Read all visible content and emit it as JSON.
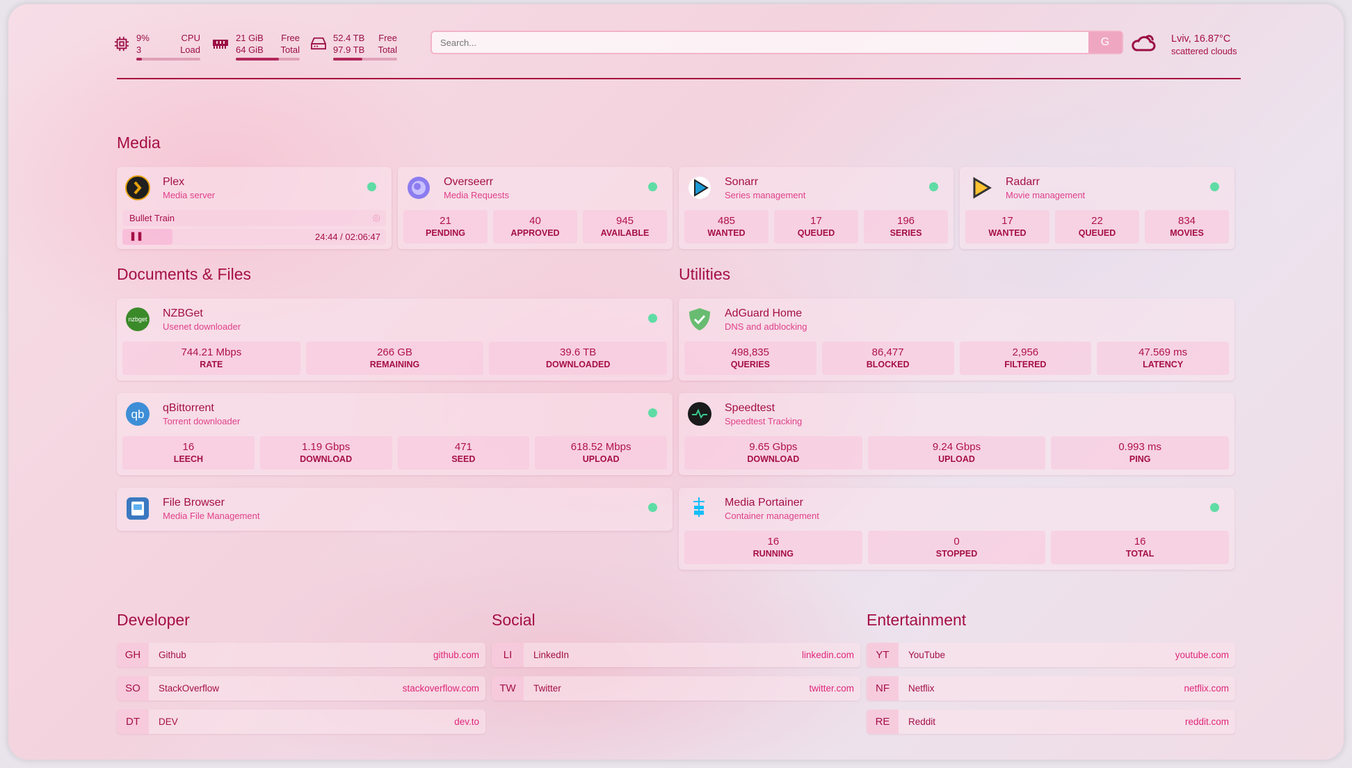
{
  "header": {
    "cpu": {
      "icon": "cpu-icon",
      "value": "9%",
      "value2": "3",
      "label": "CPU",
      "label2": "Load",
      "percent": 9
    },
    "memory": {
      "icon": "memory-icon",
      "value": "21 GiB",
      "value2": "64 GiB",
      "label": "Free",
      "label2": "Total",
      "percent": 67
    },
    "disk": {
      "icon": "disk-icon",
      "value": "52.4 TB",
      "value2": "97.9 TB",
      "label": "Free",
      "label2": "Total",
      "percent": 46
    },
    "search": {
      "placeholder": "Search...",
      "button": "G"
    },
    "weather": {
      "icon": "cloud-sun-icon",
      "location": "Lviv, 16.87°C",
      "condition": "scattered clouds"
    }
  },
  "colors": {
    "accent": "#a50f45",
    "status_ok": "#5fdca5",
    "chip": "#f8c8de"
  },
  "sections": {
    "media": "Media",
    "docs": "Documents & Files",
    "utilities": "Utilities",
    "developer": "Developer",
    "social": "Social",
    "entertainment": "Entertainment"
  },
  "plex": {
    "name": "Plex",
    "desc": "Media server",
    "now_playing": "Bullet Train",
    "time": "24:44 / 02:06:47",
    "progress_percent": 19
  },
  "services": [
    {
      "id": "overseerr",
      "name": "Overseerr",
      "desc": "Media Requests",
      "stats": [
        {
          "v": "21",
          "l": "PENDING"
        },
        {
          "v": "40",
          "l": "APPROVED"
        },
        {
          "v": "945",
          "l": "AVAILABLE"
        }
      ]
    },
    {
      "id": "sonarr",
      "name": "Sonarr",
      "desc": "Series management",
      "stats": [
        {
          "v": "485",
          "l": "WANTED"
        },
        {
          "v": "17",
          "l": "QUEUED"
        },
        {
          "v": "196",
          "l": "SERIES"
        }
      ]
    },
    {
      "id": "radarr",
      "name": "Radarr",
      "desc": "Movie management",
      "stats": [
        {
          "v": "17",
          "l": "WANTED"
        },
        {
          "v": "22",
          "l": "QUEUED"
        },
        {
          "v": "834",
          "l": "MOVIES"
        }
      ]
    },
    {
      "id": "nzbget",
      "name": "NZBGet",
      "desc": "Usenet downloader",
      "stats": [
        {
          "v": "744.21 Mbps",
          "l": "RATE"
        },
        {
          "v": "266 GB",
          "l": "REMAINING"
        },
        {
          "v": "39.6 TB",
          "l": "DOWNLOADED"
        }
      ]
    },
    {
      "id": "qbittorrent",
      "name": "qBittorrent",
      "desc": "Torrent downloader",
      "stats": [
        {
          "v": "16",
          "l": "LEECH"
        },
        {
          "v": "1.19 Gbps",
          "l": "DOWNLOAD"
        },
        {
          "v": "471",
          "l": "SEED"
        },
        {
          "v": "618.52 Mbps",
          "l": "UPLOAD"
        }
      ]
    },
    {
      "id": "filebrowser",
      "name": "File Browser",
      "desc": "Media File Management",
      "stats": []
    },
    {
      "id": "adguard",
      "name": "AdGuard Home",
      "desc": "DNS and adblocking",
      "stats": [
        {
          "v": "498,835",
          "l": "QUERIES"
        },
        {
          "v": "86,477",
          "l": "BLOCKED"
        },
        {
          "v": "2,956",
          "l": "FILTERED"
        },
        {
          "v": "47.569 ms",
          "l": "LATENCY"
        }
      ]
    },
    {
      "id": "speedtest",
      "name": "Speedtest",
      "desc": "Speedtest Tracking",
      "stats": [
        {
          "v": "9.65 Gbps",
          "l": "DOWNLOAD"
        },
        {
          "v": "9.24 Gbps",
          "l": "UPLOAD"
        },
        {
          "v": "0.993 ms",
          "l": "PING"
        }
      ]
    },
    {
      "id": "portainer",
      "name": "Media Portainer",
      "desc": "Container management",
      "stats": [
        {
          "v": "16",
          "l": "RUNNING"
        },
        {
          "v": "0",
          "l": "STOPPED"
        },
        {
          "v": "16",
          "l": "TOTAL"
        }
      ]
    }
  ],
  "links": [
    [
      {
        "ab": "GH",
        "name": "Github",
        "url": "github.com"
      },
      {
        "ab": "SO",
        "name": "StackOverflow",
        "url": "stackoverflow.com"
      },
      {
        "ab": "DT",
        "name": "DEV",
        "url": "dev.to"
      }
    ],
    [
      {
        "ab": "LI",
        "name": "LinkedIn",
        "url": "linkedin.com"
      },
      {
        "ab": "TW",
        "name": "Twitter",
        "url": "twitter.com"
      }
    ],
    [
      {
        "ab": "YT",
        "name": "YouTube",
        "url": "youtube.com"
      },
      {
        "ab": "NF",
        "name": "Netflix",
        "url": "netflix.com"
      },
      {
        "ab": "RE",
        "name": "Reddit",
        "url": "reddit.com"
      }
    ]
  ]
}
